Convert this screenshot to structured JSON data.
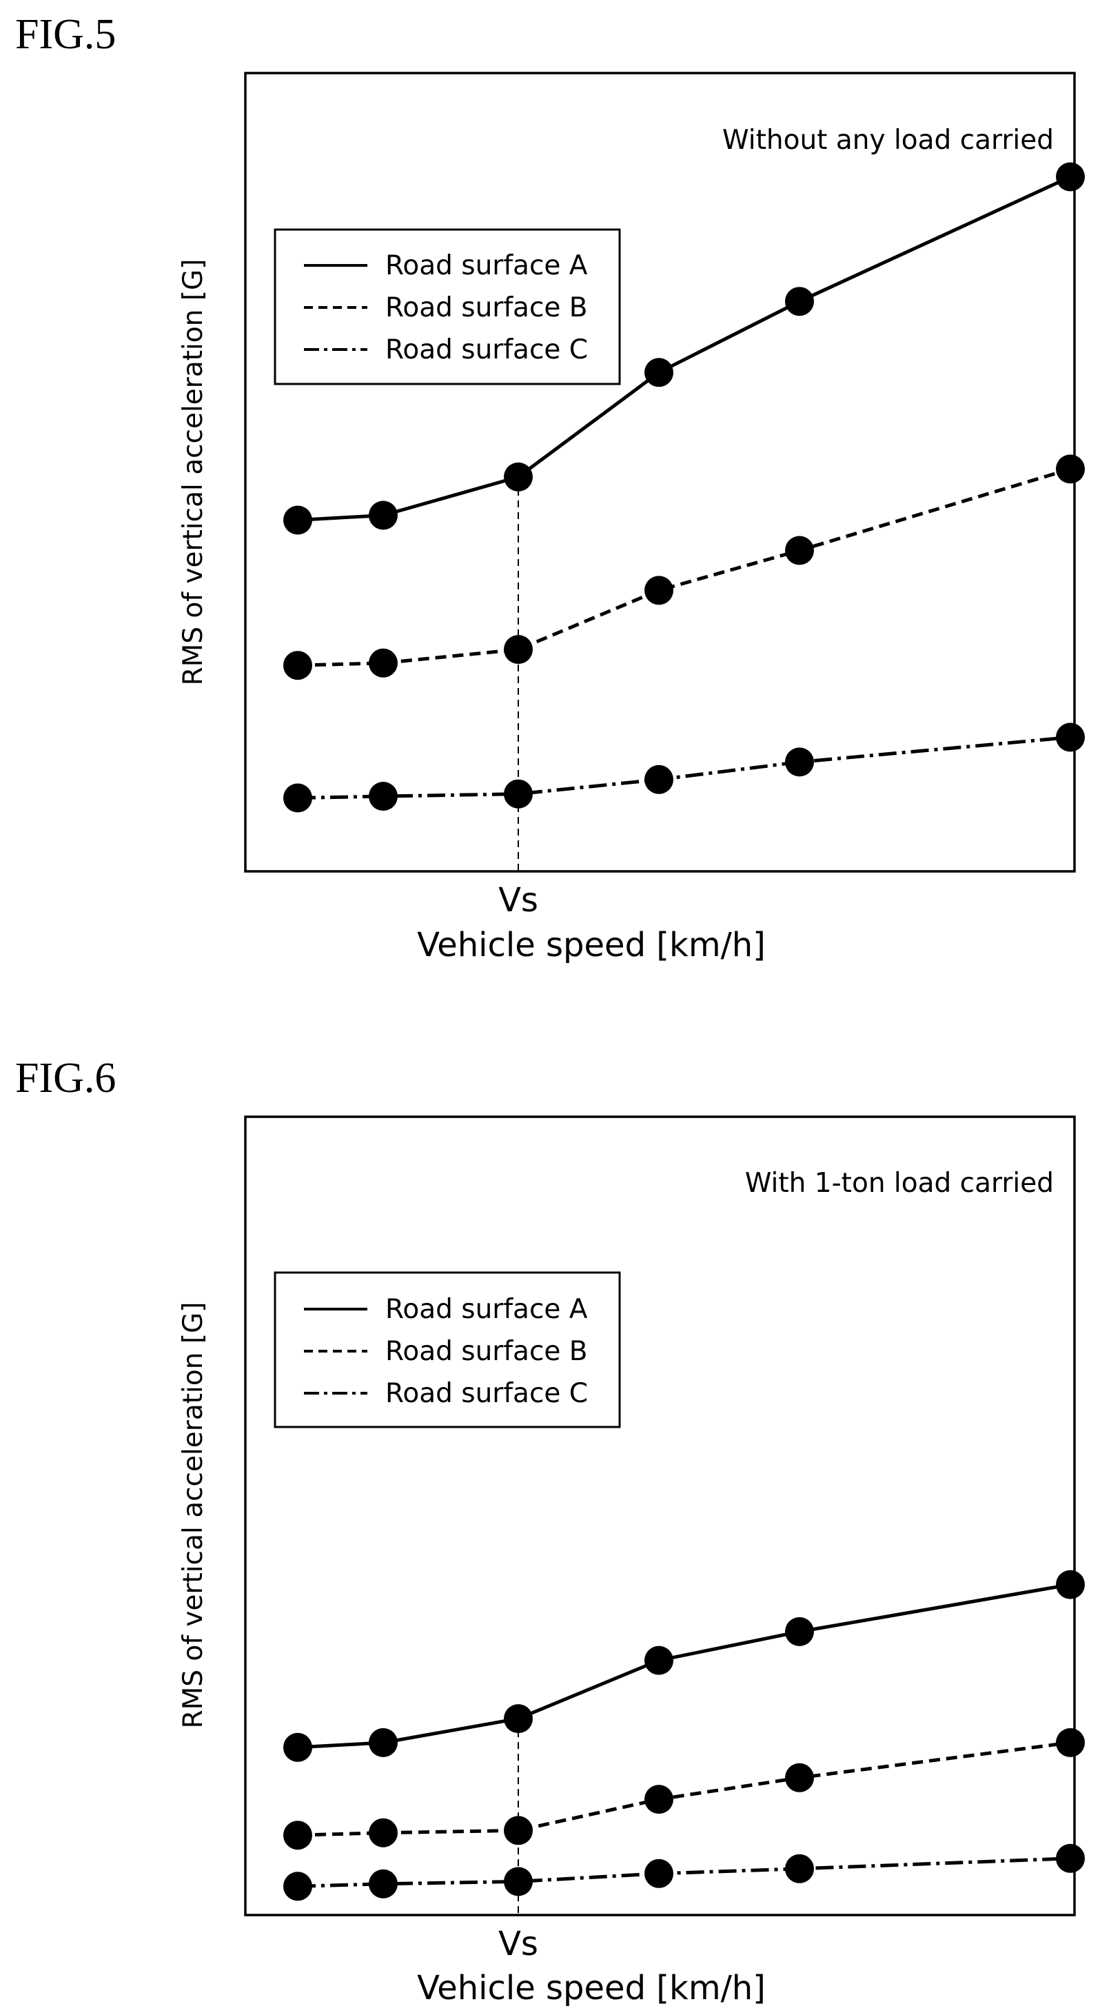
{
  "chart_data": [
    {
      "type": "line",
      "figure_label": "FIG.5",
      "annotation": "Without any load carried",
      "xlabel": "Vehicle speed [km/h]",
      "ylabel": "RMS of vertical acceleration [G]",
      "x_tick_labels": [
        "Vs"
      ],
      "x": [
        1,
        2,
        3,
        4,
        5,
        6
      ],
      "vs_index": 2,
      "ylim": [
        0,
        100
      ],
      "legend": "top-left",
      "grid": false,
      "series": [
        {
          "name": "Road surface A",
          "dash": "solid",
          "values": [
            44,
            44.6,
            49.4,
            62.5,
            71.4,
            87
          ]
        },
        {
          "name": "Road surface B",
          "dash": "dashed",
          "values": [
            25.8,
            26.1,
            27.8,
            35.2,
            40.2,
            50.4
          ]
        },
        {
          "name": "Road surface C",
          "dash": "dash-dot",
          "values": [
            9.2,
            9.4,
            9.7,
            11.5,
            13.7,
            16.8
          ]
        }
      ]
    },
    {
      "type": "line",
      "figure_label": "FIG.6",
      "annotation": "With 1-ton load carried",
      "xlabel": "Vehicle speed [km/h]",
      "ylabel": "RMS of vertical acceleration [G]",
      "x_tick_labels": [
        "Vs"
      ],
      "x": [
        1,
        2,
        3,
        4,
        5,
        6
      ],
      "vs_index": 2,
      "ylim": [
        0,
        100
      ],
      "legend": "top-left",
      "grid": false,
      "series": [
        {
          "name": "Road surface A",
          "dash": "solid",
          "values": [
            21,
            21.6,
            24.6,
            31.9,
            35.5,
            41.4
          ]
        },
        {
          "name": "Road surface B",
          "dash": "dashed",
          "values": [
            10,
            10.3,
            10.6,
            14.5,
            17.2,
            21.6
          ]
        },
        {
          "name": "Road surface C",
          "dash": "dash-dot",
          "values": [
            3.6,
            3.9,
            4.2,
            5.2,
            5.8,
            7.1
          ]
        }
      ]
    }
  ]
}
